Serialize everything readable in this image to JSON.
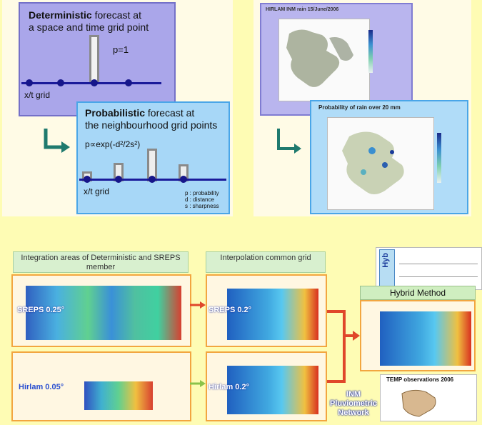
{
  "deterministic": {
    "title_bold": "Deterministic",
    "title_rest": " forecast at",
    "line2": "a space and time grid point",
    "p_label": "p=1",
    "axis_label": "x/t grid"
  },
  "probabilistic": {
    "title_bold": "Probabilistic",
    "title_rest": " forecast at",
    "line2": "the neighbourhood grid points",
    "formula": "p∝exp(-d²/2s²)",
    "axis_label": "x/t grid",
    "legend_p": "p : probability",
    "legend_d": "d : distance",
    "legend_s": "s : sharpness"
  },
  "hirlam_title": "HIRLAM INM rain 15/June/2006",
  "prob_rain_title": "Probability of rain over 20 mm",
  "integration_header": "Integration areas of Deterministic and SREPS member",
  "interp_header": "Interpolation common grid",
  "sreps_label": "SREPS 0.25°",
  "hirlam_label": "Hirlam 0.05°",
  "sreps_interp_label": "SREPS 0.2°",
  "hirlam_interp_label": "Hirlam 0.2°",
  "hybrid_title": "Hybrid Method",
  "hybrid_tag": "Hyb",
  "temp_title": "TEMP observations 2006",
  "inm_label_1": "INM",
  "inm_label_2": "Pluviometric",
  "inm_label_3": "Network",
  "colors": {
    "arrow": "#1f7a6e",
    "red_arrow": "#e0472a",
    "green_arrow": "#8bc34a"
  }
}
